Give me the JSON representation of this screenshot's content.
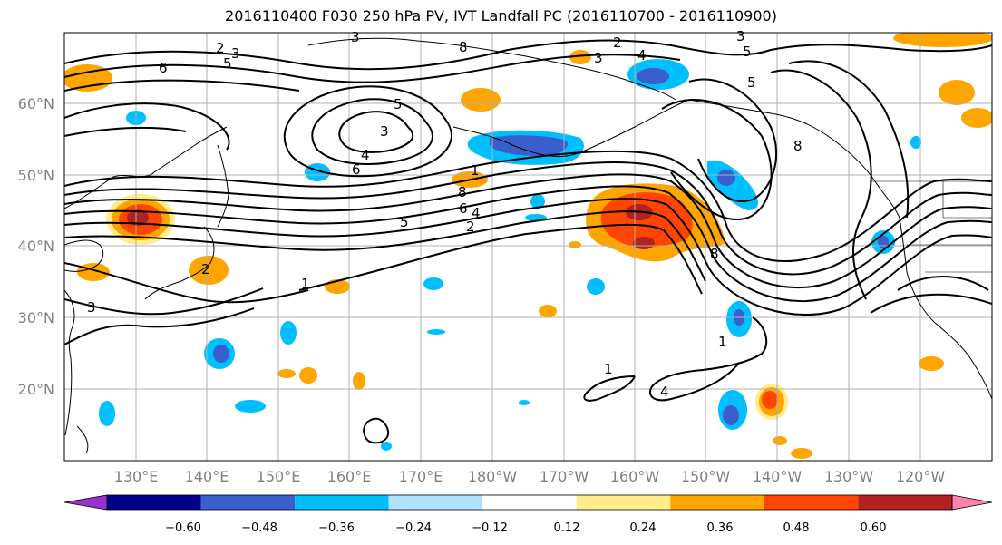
{
  "title": "2016110400 F030 250 hPa PV, IVT Landfall PC (2016110700 - 2016110900)",
  "map": {
    "lon_ticks": [
      "130°E",
      "140°E",
      "150°E",
      "160°E",
      "170°E",
      "180°W",
      "170°W",
      "160°W",
      "150°W",
      "140°W",
      "130°W",
      "120°W"
    ],
    "lat_ticks": [
      "60°N",
      "50°N",
      "40°N",
      "30°N",
      "20°N"
    ],
    "contour_labels": [
      "2",
      "3",
      "5",
      "6",
      "3",
      "8",
      "2",
      "3",
      "4",
      "3",
      "5",
      "8",
      "4",
      "6",
      "5",
      "3",
      "1",
      "8",
      "6",
      "4",
      "5",
      "2",
      "2",
      "1",
      "3",
      "1",
      "4",
      "1",
      "8",
      "5"
    ],
    "colors": {
      "ocean": "#ffffff",
      "grid": "#b0b0b0",
      "contour": "#000000"
    }
  },
  "colorbar": {
    "labels": [
      "−0.60",
      "−0.48",
      "−0.36",
      "−0.24",
      "−0.12",
      "0.12",
      "0.24",
      "0.36",
      "0.48",
      "0.60"
    ],
    "colors": [
      "#9932cc",
      "#00008b",
      "#3a5fcd",
      "#00bfff",
      "#b0e2ff",
      "#ffffff",
      "#ffec8b",
      "#ffa500",
      "#ff4500",
      "#b22222",
      "#ff82ab"
    ]
  }
}
